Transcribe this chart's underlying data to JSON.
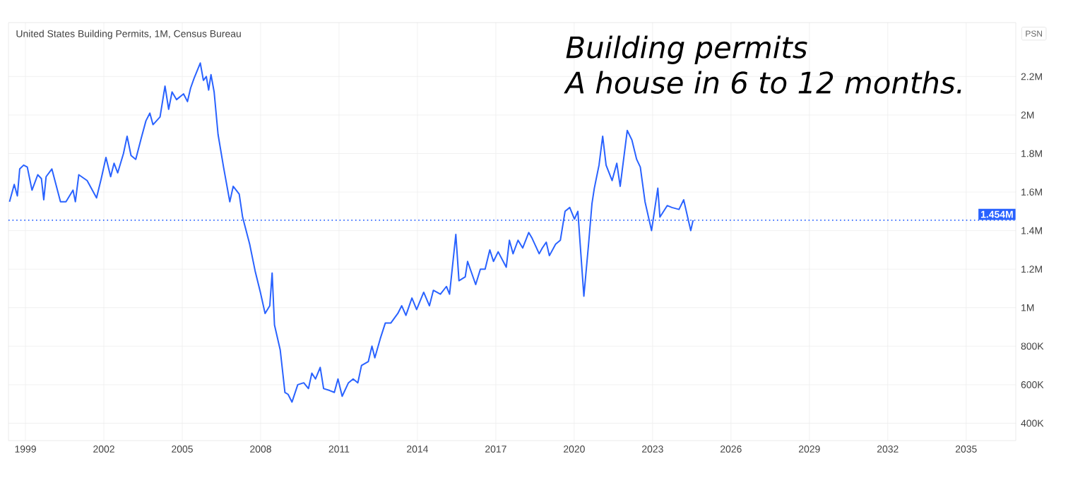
{
  "chart_data": {
    "type": "line",
    "title": "Building permits",
    "subtitle": "A house in 6 to 12 months.",
    "annotations": [
      "United States Building Permits, 1M, Census Bureau",
      "PSN"
    ],
    "series": [
      {
        "color": "#2962ff",
        "x": [
          1998.39,
          1998.57,
          1998.69,
          1998.78,
          1998.93,
          1999.07,
          1999.25,
          1999.47,
          1999.61,
          1999.7,
          1999.79,
          2000.01,
          2000.34,
          2000.55,
          2000.82,
          2000.91,
          2001.04,
          2001.36,
          2001.72,
          2001.9,
          2002.08,
          2002.26,
          2002.39,
          2002.53,
          2002.75,
          2002.89,
          2003.04,
          2003.22,
          2003.43,
          2003.61,
          2003.76,
          2003.88,
          2004.15,
          2004.34,
          2004.48,
          2004.61,
          2004.78,
          2005.05,
          2005.2,
          2005.32,
          2005.45,
          2005.69,
          2005.81,
          2005.92,
          2006.01,
          2006.1,
          2006.22,
          2006.37,
          2006.58,
          2006.82,
          2006.95,
          2007.18,
          2007.31,
          2007.58,
          2007.79,
          2007.99,
          2008.17,
          2008.35,
          2008.44,
          2008.53,
          2008.75,
          2008.93,
          2009.05,
          2009.2,
          2009.42,
          2009.65,
          2009.83,
          2009.96,
          2010.1,
          2010.28,
          2010.41,
          2010.64,
          2010.82,
          2010.96,
          2011.12,
          2011.36,
          2011.54,
          2011.72,
          2011.86,
          2012.12,
          2012.26,
          2012.37,
          2012.58,
          2012.77,
          2012.98,
          2013.25,
          2013.4,
          2013.56,
          2013.79,
          2013.97,
          2014.24,
          2014.46,
          2014.61,
          2014.88,
          2015.11,
          2015.23,
          2015.47,
          2015.59,
          2015.83,
          2015.92,
          2016.23,
          2016.41,
          2016.59,
          2016.77,
          2016.91,
          2017.09,
          2017.4,
          2017.52,
          2017.66,
          2017.85,
          2018.03,
          2018.26,
          2018.39,
          2018.66,
          2018.78,
          2018.93,
          2019.05,
          2019.29,
          2019.47,
          2019.65,
          2019.83,
          2020.01,
          2020.14,
          2020.37,
          2020.55,
          2020.68,
          2020.77,
          2020.95,
          2021.09,
          2021.22,
          2021.45,
          2021.63,
          2021.76,
          2022.03,
          2022.21,
          2022.39,
          2022.53,
          2022.71,
          2022.96,
          2023.2,
          2023.28,
          2023.56,
          2023.74,
          2024.01,
          2024.19,
          2024.46,
          2024.55
        ],
        "values": [
          1550000,
          1640000,
          1580000,
          1720000,
          1740000,
          1730000,
          1610000,
          1690000,
          1670000,
          1560000,
          1680000,
          1720000,
          1550000,
          1550000,
          1610000,
          1550000,
          1690000,
          1660000,
          1570000,
          1670000,
          1780000,
          1680000,
          1750000,
          1700000,
          1800000,
          1890000,
          1790000,
          1770000,
          1880000,
          1970000,
          2010000,
          1950000,
          1990000,
          2150000,
          2030000,
          2120000,
          2080000,
          2110000,
          2070000,
          2140000,
          2190000,
          2270000,
          2180000,
          2200000,
          2130000,
          2210000,
          2120000,
          1900000,
          1730000,
          1550000,
          1630000,
          1590000,
          1470000,
          1330000,
          1190000,
          1080000,
          970000,
          1010000,
          1180000,
          910000,
          780000,
          560000,
          550000,
          510000,
          600000,
          610000,
          580000,
          660000,
          630000,
          690000,
          580000,
          570000,
          560000,
          630000,
          540000,
          610000,
          630000,
          610000,
          700000,
          720000,
          800000,
          740000,
          840000,
          920000,
          920000,
          970000,
          1010000,
          960000,
          1050000,
          990000,
          1080000,
          1010000,
          1090000,
          1070000,
          1110000,
          1070000,
          1380000,
          1140000,
          1160000,
          1240000,
          1120000,
          1200000,
          1200000,
          1300000,
          1240000,
          1290000,
          1210000,
          1350000,
          1280000,
          1350000,
          1310000,
          1390000,
          1360000,
          1280000,
          1310000,
          1340000,
          1270000,
          1330000,
          1350000,
          1500000,
          1520000,
          1460000,
          1500000,
          1060000,
          1330000,
          1540000,
          1620000,
          1740000,
          1890000,
          1740000,
          1660000,
          1750000,
          1630000,
          1920000,
          1870000,
          1770000,
          1730000,
          1550000,
          1400000,
          1620000,
          1470000,
          1530000,
          1520000,
          1510000,
          1560000,
          1400000,
          1454000
        ]
      }
    ],
    "xlim": [
      1998.35,
      2036.9
    ],
    "ylim": [
      310000,
      2480000
    ],
    "xticks": [
      1999,
      2002,
      2005,
      2008,
      2011,
      2014,
      2017,
      2020,
      2023,
      2026,
      2029,
      2032,
      2035
    ],
    "yticks": [
      {
        "value": 400000,
        "label": "400K"
      },
      {
        "value": 600000,
        "label": "600K"
      },
      {
        "value": 800000,
        "label": "800K"
      },
      {
        "value": 1000000,
        "label": "1M"
      },
      {
        "value": 1200000,
        "label": "1.2M"
      },
      {
        "value": 1400000,
        "label": "1.4M"
      },
      {
        "value": 1600000,
        "label": "1.6M"
      },
      {
        "value": 1800000,
        "label": "1.8M"
      },
      {
        "value": 2000000,
        "label": "2M"
      },
      {
        "value": 2200000,
        "label": "2.2M"
      }
    ],
    "ref_lines": [
      {
        "axis": "y",
        "value": 1454000,
        "label": "1.454M",
        "color": "#2962ff",
        "line_style": "dotted"
      }
    ],
    "grid": true,
    "marker": "none",
    "line_style": "solid"
  }
}
